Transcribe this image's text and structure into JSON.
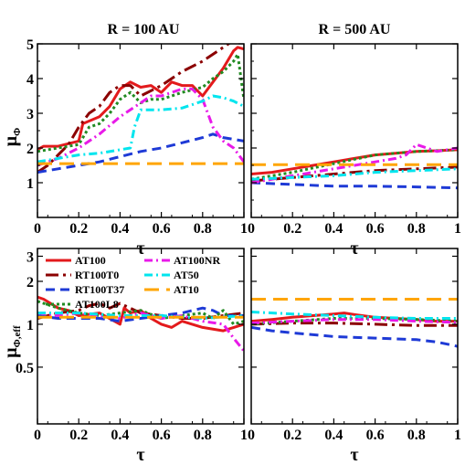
{
  "figure": {
    "col_titles": [
      "R = 100 AU",
      "R = 500 AU"
    ],
    "xlabel": "τ",
    "ylabel_top_main": "μ",
    "ylabel_top_sub": "Φ",
    "ylabel_bot_main": "μ",
    "ylabel_bot_sub": "Φ,eff"
  },
  "legend": [
    {
      "name": "AT100",
      "color": "#e31a1c",
      "dash": "solid"
    },
    {
      "name": "AT100NR",
      "color": "#e81ae8",
      "dash": "dashdot"
    },
    {
      "name": "RT100T0",
      "color": "#8b0000",
      "dash": "longdashdot"
    },
    {
      "name": "AT50",
      "color": "#00e5ee",
      "dash": "dashdot"
    },
    {
      "name": "RT100T37",
      "color": "#1e3ad6",
      "dash": "dashed"
    },
    {
      "name": "AT10",
      "color": "#ffa500",
      "dash": "longdashed"
    },
    {
      "name": "AT100L8",
      "color": "#228b22",
      "dash": "dotted"
    }
  ],
  "chart_data": [
    {
      "type": "line",
      "panel": "top-left",
      "title": "R = 100 AU",
      "xlabel": "τ",
      "ylabel": "μΦ",
      "xlim": [
        0,
        1
      ],
      "ylim": [
        0,
        5
      ],
      "xticks": [
        "0",
        "0.2",
        "0.4",
        "0.6",
        "0.8",
        "1"
      ],
      "yticks": [
        "1",
        "2",
        "3",
        "4",
        "5"
      ],
      "series": [
        {
          "name": "AT100",
          "x": [
            0,
            0.03,
            0.1,
            0.2,
            0.22,
            0.3,
            0.35,
            0.4,
            0.45,
            0.5,
            0.55,
            0.6,
            0.65,
            0.7,
            0.75,
            0.8,
            0.85,
            0.9,
            0.95,
            0.97,
            1.0
          ],
          "y": [
            1.95,
            2.05,
            2.05,
            2.2,
            2.7,
            2.9,
            3.2,
            3.7,
            3.9,
            3.75,
            3.8,
            3.6,
            3.9,
            3.8,
            3.8,
            3.5,
            3.9,
            4.3,
            4.8,
            4.9,
            4.85
          ]
        },
        {
          "name": "RT100T0",
          "x": [
            0,
            0.05,
            0.1,
            0.15,
            0.2,
            0.25,
            0.3,
            0.35,
            0.4,
            0.45,
            0.5,
            0.6,
            0.7,
            0.8,
            0.9,
            0.95
          ],
          "y": [
            1.3,
            1.5,
            1.8,
            2.1,
            2.6,
            3.0,
            3.2,
            3.6,
            3.8,
            3.8,
            3.5,
            3.8,
            4.2,
            4.5,
            4.9,
            5.1
          ]
        },
        {
          "name": "RT100T37",
          "x": [
            0,
            0.1,
            0.2,
            0.3,
            0.4,
            0.5,
            0.6,
            0.7,
            0.8,
            0.85,
            0.9,
            1.0
          ],
          "y": [
            1.3,
            1.4,
            1.5,
            1.6,
            1.75,
            1.9,
            2.0,
            2.15,
            2.3,
            2.4,
            2.3,
            2.2
          ]
        },
        {
          "name": "AT100L8",
          "x": [
            0,
            0.05,
            0.1,
            0.2,
            0.25,
            0.3,
            0.35,
            0.4,
            0.45,
            0.5,
            0.55,
            0.6,
            0.7,
            0.8,
            0.85,
            0.9,
            0.95,
            0.97,
            1.0
          ],
          "y": [
            1.9,
            1.95,
            2.0,
            2.1,
            2.6,
            2.7,
            3.0,
            3.4,
            3.6,
            3.3,
            3.4,
            3.4,
            3.6,
            3.75,
            4.0,
            4.2,
            4.5,
            4.7,
            3.4
          ]
        },
        {
          "name": "AT100NR",
          "x": [
            0,
            0.1,
            0.2,
            0.3,
            0.4,
            0.5,
            0.55,
            0.6,
            0.65,
            0.7,
            0.75,
            0.8,
            0.85,
            0.9,
            0.95,
            1.0
          ],
          "y": [
            1.5,
            1.7,
            2.0,
            2.4,
            2.9,
            3.3,
            3.5,
            3.5,
            3.6,
            3.7,
            3.7,
            3.4,
            2.6,
            2.2,
            2.0,
            1.6
          ]
        },
        {
          "name": "AT50",
          "x": [
            0,
            0.1,
            0.2,
            0.3,
            0.4,
            0.45,
            0.47,
            0.5,
            0.6,
            0.7,
            0.8,
            0.85,
            0.9,
            0.95,
            1.0
          ],
          "y": [
            1.6,
            1.7,
            1.8,
            1.85,
            1.95,
            2.0,
            2.6,
            3.1,
            3.1,
            3.15,
            3.35,
            3.5,
            3.45,
            3.35,
            3.2
          ]
        },
        {
          "name": "AT10",
          "x": [
            0,
            1.0
          ],
          "y": [
            1.55,
            1.55
          ]
        }
      ]
    },
    {
      "type": "line",
      "panel": "top-right",
      "title": "R = 500 AU",
      "xlabel": "τ",
      "xlim": [
        0,
        1
      ],
      "ylim": [
        0,
        5
      ],
      "xticks": [
        "0",
        "0.2",
        "0.4",
        "0.6",
        "0.8",
        "1"
      ],
      "series": [
        {
          "name": "AT100",
          "x": [
            0,
            0.1,
            0.2,
            0.3,
            0.4,
            0.5,
            0.6,
            0.7,
            0.8,
            0.9,
            1.0
          ],
          "y": [
            1.25,
            1.3,
            1.4,
            1.5,
            1.6,
            1.7,
            1.8,
            1.85,
            1.9,
            1.92,
            1.95
          ]
        },
        {
          "name": "RT100T0",
          "x": [
            0,
            0.2,
            0.4,
            0.6,
            0.8,
            1.0
          ],
          "y": [
            1.05,
            1.15,
            1.25,
            1.35,
            1.4,
            1.45
          ]
        },
        {
          "name": "RT100T37",
          "x": [
            0,
            0.2,
            0.4,
            0.6,
            0.8,
            1.0
          ],
          "y": [
            1.0,
            0.95,
            0.9,
            0.9,
            0.88,
            0.85
          ]
        },
        {
          "name": "AT100L8",
          "x": [
            0,
            0.2,
            0.4,
            0.6,
            0.8,
            1.0
          ],
          "y": [
            1.1,
            1.3,
            1.55,
            1.8,
            1.9,
            1.95
          ]
        },
        {
          "name": "AT100NR",
          "x": [
            0,
            0.2,
            0.4,
            0.6,
            0.7,
            0.75,
            0.8,
            0.85,
            0.9,
            1.0
          ],
          "y": [
            1.0,
            1.2,
            1.4,
            1.6,
            1.7,
            1.8,
            2.1,
            2.0,
            1.9,
            2.0
          ]
        },
        {
          "name": "AT50",
          "x": [
            0,
            0.2,
            0.4,
            0.6,
            0.8,
            1.0
          ],
          "y": [
            1.1,
            1.15,
            1.2,
            1.3,
            1.35,
            1.4
          ]
        },
        {
          "name": "AT10",
          "x": [
            0,
            1.0
          ],
          "y": [
            1.52,
            1.52
          ]
        }
      ]
    },
    {
      "type": "line",
      "panel": "bottom-left",
      "xlabel": "τ",
      "ylabel": "μΦ,eff",
      "xlim": [
        0,
        1
      ],
      "ylim": [
        0.2,
        3.4
      ],
      "yscale": "log",
      "xticks": [
        "0",
        "0.2",
        "0.4",
        "0.6",
        "0.8",
        "1"
      ],
      "yticks": [
        "0.5",
        "1",
        "2",
        "3"
      ],
      "series": [
        {
          "name": "AT100",
          "x": [
            0,
            0.03,
            0.1,
            0.15,
            0.2,
            0.3,
            0.4,
            0.42,
            0.45,
            0.5,
            0.55,
            0.6,
            0.65,
            0.7,
            0.8,
            0.9,
            1.0
          ],
          "y": [
            1.55,
            1.5,
            1.3,
            1.25,
            1.15,
            1.2,
            1.0,
            1.3,
            1.2,
            1.25,
            1.1,
            1.0,
            0.95,
            1.05,
            0.95,
            0.9,
            1.0
          ]
        },
        {
          "name": "RT100T0",
          "x": [
            0,
            0.1,
            0.2,
            0.25,
            0.3,
            0.35,
            0.4,
            0.5,
            0.6,
            0.7,
            0.8,
            0.9,
            1.0
          ],
          "y": [
            1.1,
            1.2,
            1.25,
            1.35,
            1.4,
            1.3,
            1.4,
            1.2,
            1.15,
            1.1,
            1.1,
            1.15,
            1.2
          ]
        },
        {
          "name": "RT100T37",
          "x": [
            0,
            0.1,
            0.2,
            0.3,
            0.4,
            0.5,
            0.6,
            0.7,
            0.8,
            0.85,
            0.9,
            1.0
          ],
          "y": [
            1.15,
            1.1,
            1.1,
            1.1,
            1.05,
            1.1,
            1.15,
            1.2,
            1.3,
            1.25,
            1.15,
            1.15
          ]
        },
        {
          "name": "AT100L8",
          "x": [
            0,
            0.1,
            0.2,
            0.3,
            0.4,
            0.5,
            0.6,
            0.7,
            0.8,
            0.85,
            0.9,
            0.95,
            1.0
          ],
          "y": [
            1.45,
            1.3,
            1.2,
            1.15,
            1.2,
            1.25,
            1.1,
            1.15,
            1.2,
            1.1,
            1.25,
            1.0,
            1.05
          ]
        },
        {
          "name": "AT100NR",
          "x": [
            0,
            0.1,
            0.2,
            0.3,
            0.4,
            0.5,
            0.6,
            0.7,
            0.8,
            0.9,
            0.95,
            1.0
          ],
          "y": [
            1.2,
            1.15,
            1.2,
            1.15,
            1.1,
            1.2,
            1.1,
            1.15,
            1.05,
            1.0,
            0.8,
            0.65
          ]
        },
        {
          "name": "AT50",
          "x": [
            0,
            0.2,
            0.4,
            0.6,
            0.8,
            1.0
          ],
          "y": [
            1.2,
            1.2,
            1.15,
            1.15,
            1.1,
            1.15
          ]
        },
        {
          "name": "AT10",
          "x": [
            0,
            1.0
          ],
          "y": [
            1.12,
            1.12
          ]
        }
      ]
    },
    {
      "type": "line",
      "panel": "bottom-right",
      "xlabel": "τ",
      "xlim": [
        0,
        1
      ],
      "ylim": [
        0.2,
        3.4
      ],
      "yscale": "log",
      "xticks": [
        "0",
        "0.2",
        "0.4",
        "0.6",
        "0.8",
        "1"
      ],
      "series": [
        {
          "name": "AT100",
          "x": [
            0,
            0.1,
            0.2,
            0.3,
            0.4,
            0.45,
            0.5,
            0.6,
            0.7,
            0.8,
            0.9,
            1.0
          ],
          "y": [
            1.05,
            1.08,
            1.12,
            1.15,
            1.18,
            1.2,
            1.17,
            1.12,
            1.1,
            1.08,
            1.05,
            1.05
          ]
        },
        {
          "name": "RT100T0",
          "x": [
            0,
            0.2,
            0.4,
            0.6,
            0.8,
            1.0
          ],
          "y": [
            1.0,
            1.02,
            1.02,
            1.0,
            0.98,
            0.98
          ]
        },
        {
          "name": "RT100T37",
          "x": [
            0,
            0.1,
            0.2,
            0.4,
            0.6,
            0.8,
            0.9,
            1.0
          ],
          "y": [
            0.95,
            0.9,
            0.87,
            0.82,
            0.8,
            0.78,
            0.75,
            0.7
          ]
        },
        {
          "name": "AT100L8",
          "x": [
            0,
            0.2,
            0.4,
            0.6,
            0.8,
            1.0
          ],
          "y": [
            1.0,
            1.05,
            1.1,
            1.1,
            1.08,
            1.05
          ]
        },
        {
          "name": "AT100NR",
          "x": [
            0,
            0.2,
            0.4,
            0.6,
            0.8,
            1.0
          ],
          "y": [
            1.02,
            1.05,
            1.08,
            1.08,
            1.05,
            1.03
          ]
        },
        {
          "name": "AT50",
          "x": [
            0,
            0.2,
            0.4,
            0.6,
            0.8,
            1.0
          ],
          "y": [
            1.22,
            1.18,
            1.15,
            1.12,
            1.1,
            1.1
          ]
        },
        {
          "name": "AT10",
          "x": [
            0,
            1.0
          ],
          "y": [
            1.5,
            1.5
          ]
        }
      ]
    }
  ]
}
